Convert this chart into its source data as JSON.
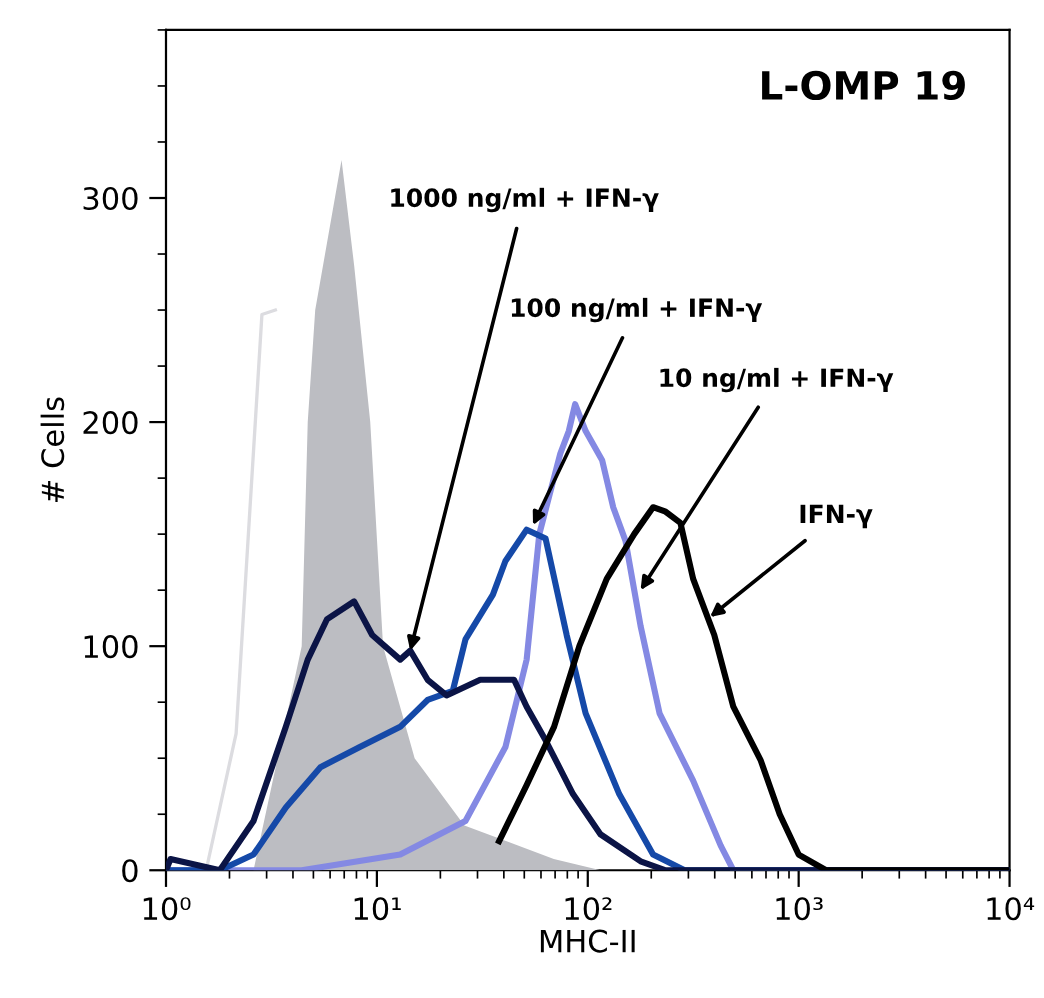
{
  "chart_data": {
    "type": "line",
    "title": "L-OMP 19",
    "xlabel": "MHC-II",
    "ylabel": "# Cells",
    "log": "x",
    "xlim": [
      1,
      10000
    ],
    "xticks": [
      {
        "value": 1,
        "label": "10⁰"
      },
      {
        "value": 10,
        "label": "10¹"
      },
      {
        "value": 100,
        "label": "10²"
      },
      {
        "value": 1000,
        "label": "10³"
      },
      {
        "value": 10000,
        "label": "10⁴"
      }
    ],
    "ylim": [
      0,
      375
    ],
    "yticks": [
      0,
      100,
      200,
      300
    ],
    "grid": false,
    "legend": false,
    "series": [
      {
        "color": "#dcdce0",
        "x": [
          1,
          1.55,
          2.15,
          2.85,
          3.3
        ],
        "values": [
          0,
          0,
          61,
          248,
          250
        ]
      },
      {
        "type": "area",
        "color": "#bcbdc2",
        "x": [
          1,
          2.6,
          4.4,
          4.7,
          5.1,
          6.8,
          7.8,
          9.3,
          10.7,
          15.1,
          26,
          69,
          115
        ],
        "values": [
          0,
          0,
          100,
          200,
          250,
          317,
          270,
          200,
          100,
          50,
          20,
          5,
          0
        ]
      },
      {
        "color": "#8489e3",
        "x": [
          1,
          4.4,
          12.9,
          26.3,
          40.7,
          51.3,
          58.9,
          74.1,
          81.3,
          87.1,
          97.7,
          117,
          132,
          151,
          178,
          219,
          316,
          427,
          490,
          10000
        ],
        "values": [
          0,
          0,
          7,
          22,
          55,
          94,
          150,
          186,
          196,
          208,
          196,
          183,
          162,
          147,
          109,
          70,
          40,
          11,
          0,
          0
        ]
      },
      {
        "color": "#1549a8",
        "x": [
          1,
          1.8,
          2.6,
          3.7,
          5.4,
          8.3,
          12.9,
          17.4,
          22.9,
          26.3,
          35.5,
          40.7,
          51.3,
          63.1,
          79.4,
          97.7,
          141,
          204,
          288,
          10000
        ],
        "values": [
          0,
          0,
          7,
          28,
          46,
          55,
          64,
          76,
          80,
          103,
          123,
          138,
          152,
          148,
          105,
          70,
          34,
          7,
          0,
          0
        ]
      },
      {
        "color": "#0b1446",
        "x": [
          1,
          1.05,
          1.8,
          2.6,
          3.7,
          4.7,
          5.8,
          7.8,
          9.5,
          12.9,
          14.4,
          17.4,
          21.4,
          30.9,
          44.7,
          51.3,
          63.1,
          85.1,
          115,
          178,
          234,
          10000
        ],
        "values": [
          0,
          5,
          0,
          22,
          64,
          94,
          112,
          120,
          105,
          94,
          98,
          85,
          78,
          85,
          85,
          73,
          58,
          34,
          16,
          4,
          0,
          0
        ]
      },
      {
        "color": "#000000",
        "x": [
          38,
          51.3,
          69.2,
          91.2,
          123,
          166,
          204,
          234,
          275,
          316,
          398,
          490,
          661,
          813,
          1000,
          1349,
          10000
        ],
        "values": [
          13,
          38,
          64,
          100,
          130,
          150,
          162,
          160,
          155,
          130,
          105,
          73,
          49,
          25,
          7,
          0,
          0
        ]
      }
    ],
    "annotations": [
      {
        "text": "1000 ng/ml + IFN-γ",
        "x": 14.4,
        "y": 98
      },
      {
        "text": "100 ng/ml + IFN-γ",
        "x": 55,
        "y": 154
      },
      {
        "text": "10 ng/ml + IFN-γ",
        "x": 178,
        "y": 125
      },
      {
        "text": "IFN-γ",
        "x": 380,
        "y": 113
      }
    ]
  }
}
